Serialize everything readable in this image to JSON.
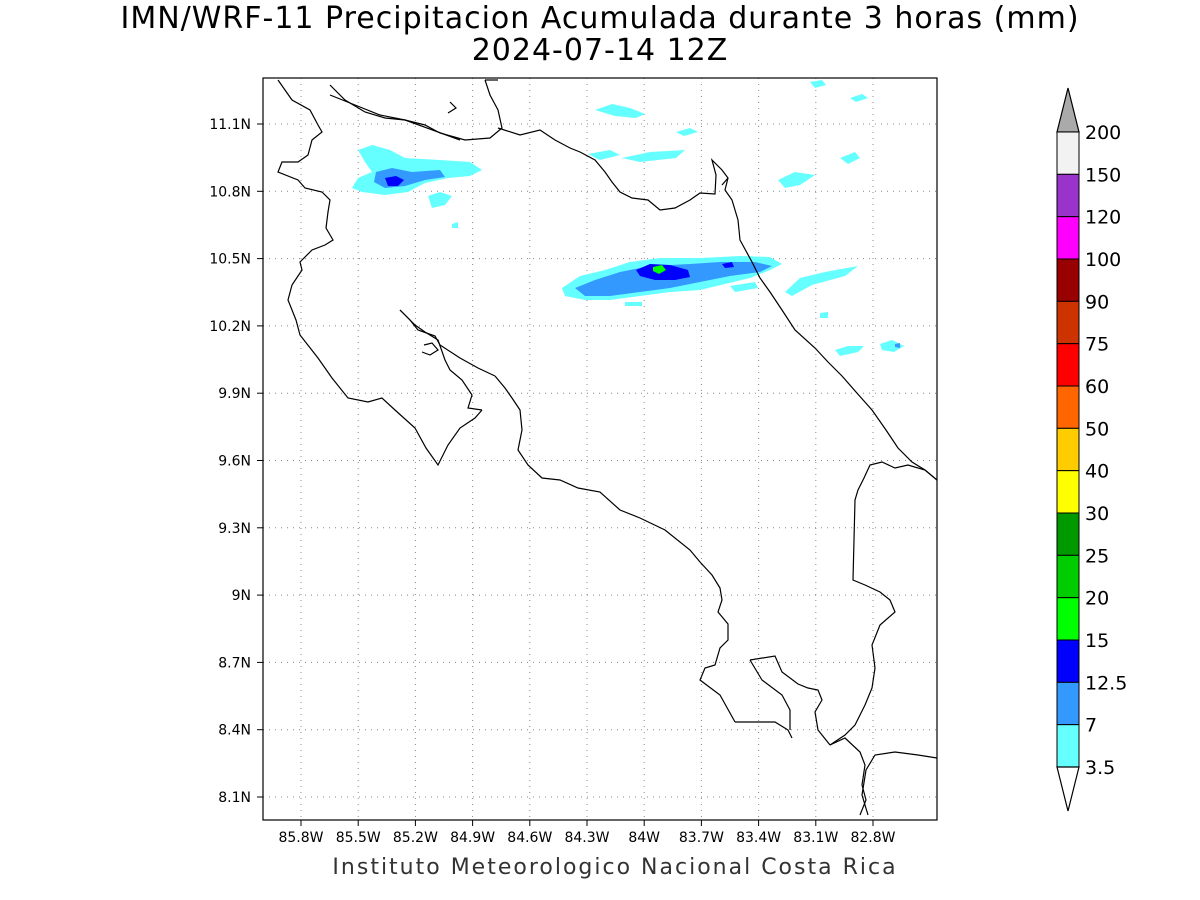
{
  "title": {
    "line1": "IMN/WRF-11 Precipitacion Acumulada durante 3 horas (mm)",
    "line2": "2024-07-14 12Z"
  },
  "map": {
    "lon_range": [
      -86.0,
      -83.0
    ],
    "lat_range": [
      8.0,
      11.3
    ],
    "lon_ticks": [
      "85.8W",
      "85.5W",
      "85.2W",
      "84.9W",
      "84.6W",
      "84.3W",
      "84W",
      "83.7W",
      "83.4W",
      "83.1W",
      "82.8W"
    ],
    "lat_ticks": [
      "11.1N",
      "10.8N",
      "10.5N",
      "10.2N",
      "9.9N",
      "9.6N",
      "9.3N",
      "9N",
      "8.7N",
      "8.4N",
      "8.1N"
    ],
    "grid": "dotted"
  },
  "colorbar": {
    "labels": [
      "200",
      "150",
      "120",
      "100",
      "90",
      "75",
      "60",
      "50",
      "40",
      "30",
      "25",
      "20",
      "15",
      "12.5",
      "7",
      "3.5"
    ],
    "colors": [
      "#f2f2f2",
      "#9933cc",
      "#ff00ff",
      "#990000",
      "#cc3300",
      "#ff0000",
      "#ff6600",
      "#ffcc00",
      "#ffff00",
      "#009900",
      "#00cc00",
      "#00ff00",
      "#0000ff",
      "#3399ff",
      "#66ffff"
    ],
    "top_arrow_color": "#aaaaaa",
    "bottom_arrow_color": "#ffffff"
  },
  "precip_colors": {
    "c3_5": "#66ffff",
    "c7": "#3399ff",
    "c12_5": "#0000ff",
    "c15": "#00ff00"
  },
  "credit": "Instituto Meteorologico Nacional Costa Rica"
}
